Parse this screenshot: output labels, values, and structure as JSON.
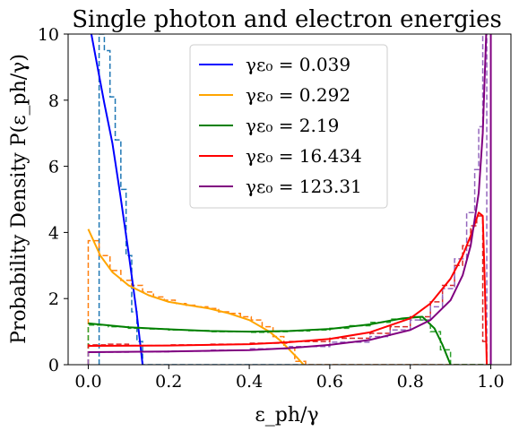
{
  "chart_data": {
    "type": "line",
    "title": "Single photon and electron energies",
    "xlabel": "ε_ph/γ",
    "ylabel": "Probability Density P(ε_ph/γ)",
    "xlim": [
      -0.05,
      1.05
    ],
    "ylim": [
      0,
      10
    ],
    "xticks": [
      0.0,
      0.2,
      0.4,
      0.6,
      0.8,
      1.0
    ],
    "xtick_labels": [
      "0.0",
      "0.2",
      "0.4",
      "0.6",
      "0.8",
      "1.0"
    ],
    "yticks": [
      0,
      2,
      4,
      6,
      8,
      10
    ],
    "ytick_labels": [
      "0",
      "2",
      "4",
      "6",
      "8",
      "10"
    ],
    "grid": false,
    "legend_placement": "top-center",
    "series": [
      {
        "name": "γε₀ = 0.039",
        "color": "#0000ff",
        "hist_color": "#1f77b4",
        "x": [
          0.0,
          0.02,
          0.04,
          0.06,
          0.08,
          0.1,
          0.12,
          0.135
        ],
        "y": [
          10.5,
          9.2,
          7.9,
          6.7,
          5.1,
          3.4,
          1.6,
          0.0
        ],
        "hist_edges": [
          0.027,
          0.04,
          0.054,
          0.067,
          0.081,
          0.094,
          0.108,
          0.121,
          0.135,
          1.0
        ],
        "hist_values": [
          10.0,
          9.5,
          8.1,
          6.8,
          5.3,
          3.3,
          1.6,
          0.7,
          0.0
        ]
      },
      {
        "name": "γε₀ = 0.292",
        "color": "#ffa500",
        "hist_color": "#ff7f0e",
        "x": [
          0.0,
          0.03,
          0.06,
          0.1,
          0.15,
          0.2,
          0.25,
          0.3,
          0.35,
          0.4,
          0.45,
          0.48,
          0.5,
          0.52,
          0.535
        ],
        "y": [
          4.1,
          3.3,
          2.8,
          2.4,
          2.1,
          1.9,
          1.8,
          1.7,
          1.55,
          1.35,
          1.0,
          0.7,
          0.45,
          0.2,
          0.0
        ],
        "hist_edges": [
          0.0,
          0.027,
          0.054,
          0.081,
          0.108,
          0.135,
          0.162,
          0.189,
          0.216,
          0.243,
          0.27,
          0.297,
          0.324,
          0.351,
          0.378,
          0.405,
          0.432,
          0.459,
          0.486,
          0.513,
          0.54,
          1.0
        ],
        "hist_values": [
          3.75,
          3.3,
          2.85,
          2.55,
          2.4,
          2.2,
          2.05,
          1.95,
          1.85,
          1.8,
          1.75,
          1.7,
          1.6,
          1.55,
          1.45,
          1.35,
          1.15,
          0.85,
          0.5,
          0.1,
          0.0
        ]
      },
      {
        "name": "γε₀ = 2.19",
        "color": "#008000",
        "hist_color": "#2ca02c",
        "x": [
          0.0,
          0.1,
          0.2,
          0.3,
          0.4,
          0.5,
          0.6,
          0.7,
          0.78,
          0.83,
          0.86,
          0.88,
          0.895,
          0.9
        ],
        "y": [
          1.25,
          1.13,
          1.07,
          1.02,
          1.0,
          1.02,
          1.08,
          1.22,
          1.4,
          1.45,
          1.1,
          0.6,
          0.15,
          0.0
        ],
        "hist_edges": [
          0.0,
          0.05,
          0.1,
          0.15,
          0.2,
          0.25,
          0.3,
          0.35,
          0.4,
          0.45,
          0.5,
          0.55,
          0.6,
          0.65,
          0.7,
          0.75,
          0.8,
          0.825,
          0.85,
          0.875,
          0.9,
          1.0
        ],
        "hist_values": [
          1.2,
          1.15,
          1.1,
          1.08,
          1.05,
          1.03,
          1.0,
          1.0,
          0.98,
          1.0,
          1.02,
          1.05,
          1.1,
          1.18,
          1.28,
          1.38,
          1.45,
          1.35,
          1.0,
          0.45,
          0.0
        ]
      },
      {
        "name": "γε₀ = 16.434",
        "color": "#ff0000",
        "hist_color": "#d62728",
        "x": [
          0.0,
          0.2,
          0.4,
          0.5,
          0.6,
          0.7,
          0.8,
          0.85,
          0.9,
          0.93,
          0.95,
          0.97,
          0.98,
          0.985,
          0.99
        ],
        "y": [
          0.57,
          0.58,
          0.62,
          0.68,
          0.78,
          0.98,
          1.4,
          1.85,
          2.6,
          3.3,
          3.9,
          4.6,
          4.5,
          2.5,
          0.0
        ],
        "hist_edges": [
          0.0,
          0.05,
          0.1,
          0.2,
          0.3,
          0.4,
          0.5,
          0.6,
          0.7,
          0.75,
          0.8,
          0.85,
          0.88,
          0.91,
          0.93,
          0.95,
          0.965,
          0.98,
          0.99,
          1.0
        ],
        "hist_values": [
          0.6,
          0.62,
          0.58,
          0.6,
          0.62,
          0.65,
          0.7,
          0.8,
          0.95,
          1.15,
          1.45,
          1.9,
          2.4,
          3.0,
          3.6,
          4.2,
          4.5,
          0.7,
          0.0
        ]
      },
      {
        "name": "γε₀ = 123.31",
        "color": "#800080",
        "hist_color": "#9467bd",
        "x": [
          0.0,
          0.2,
          0.4,
          0.5,
          0.6,
          0.7,
          0.8,
          0.85,
          0.9,
          0.93,
          0.95,
          0.97,
          0.98,
          0.99,
          0.995
        ],
        "y": [
          0.38,
          0.4,
          0.44,
          0.5,
          0.6,
          0.75,
          1.05,
          1.35,
          1.95,
          2.7,
          3.6,
          5.2,
          7.0,
          10.5,
          10.5
        ],
        "hist_edges": [
          0.0,
          0.1,
          0.2,
          0.3,
          0.4,
          0.5,
          0.6,
          0.7,
          0.75,
          0.8,
          0.85,
          0.88,
          0.91,
          0.94,
          0.96,
          0.97,
          0.98,
          0.99,
          1.0
        ],
        "hist_values": [
          0.38,
          0.39,
          0.41,
          0.44,
          0.48,
          0.55,
          0.68,
          0.85,
          1.05,
          1.35,
          1.75,
          2.3,
          3.2,
          4.6,
          5.9,
          7.2,
          10.5,
          0.0
        ]
      }
    ],
    "vertical_line": {
      "x": 1.0,
      "color": "#800080"
    }
  }
}
